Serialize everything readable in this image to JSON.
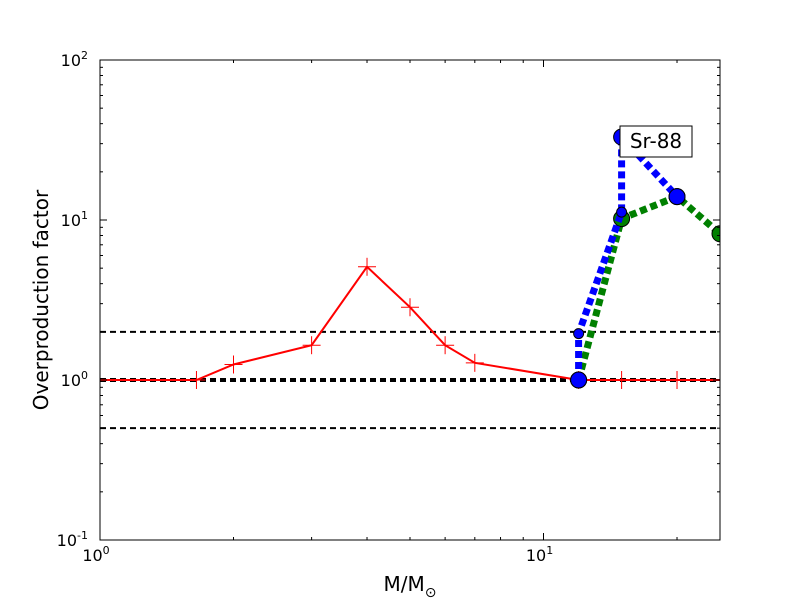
{
  "chart_data": {
    "type": "line",
    "xlabel": "M/M",
    "xlabel_subscript": "⊙",
    "ylabel": "Overproduction factor",
    "xscale": "log",
    "yscale": "log",
    "xlim": [
      1,
      25
    ],
    "ylim": [
      0.1,
      100
    ],
    "x_ticks": [
      {
        "value": 1,
        "base": "10",
        "exp": "0"
      },
      {
        "value": 10,
        "base": "10",
        "exp": "1"
      }
    ],
    "y_ticks": [
      {
        "value": 0.1,
        "base": "10",
        "exp": "-1"
      },
      {
        "value": 1,
        "base": "10",
        "exp": "0"
      },
      {
        "value": 10,
        "base": "10",
        "exp": "1"
      },
      {
        "value": 100,
        "base": "10",
        "exp": "2"
      }
    ],
    "grid": false,
    "annotation": {
      "text": "Sr-88",
      "x": 20.5,
      "y": 30
    },
    "reference_lines": [
      {
        "y": 2,
        "style": "dashed",
        "color": "#000000",
        "weight": "thin"
      },
      {
        "y": 1,
        "style": "dashed",
        "color": "#000000",
        "weight": "thick"
      },
      {
        "y": 0.5,
        "style": "dashed",
        "color": "#000000",
        "weight": "thin"
      }
    ],
    "series": [
      {
        "style": "solid",
        "marker": "plus",
        "color": "#ff0000",
        "x": [
          1,
          1.65,
          2,
          3,
          4,
          5,
          6,
          7,
          12,
          15,
          20,
          25
        ],
        "y": [
          1.0,
          1.0,
          1.25,
          1.65,
          5.1,
          2.85,
          1.65,
          1.28,
          1.0,
          1.0,
          1.0,
          1.0
        ]
      },
      {
        "style": "dotted",
        "marker": "circle",
        "color": "#008000",
        "x": [
          12,
          15,
          20,
          25
        ],
        "y": [
          1.0,
          10.2,
          14.0,
          8.2
        ]
      },
      {
        "style": "dotted",
        "marker": "circle",
        "color": "#0000ff",
        "x": [
          12,
          12,
          15,
          15,
          20
        ],
        "y": [
          1.0,
          1.95,
          11.2,
          33.0,
          14.0
        ]
      }
    ]
  }
}
